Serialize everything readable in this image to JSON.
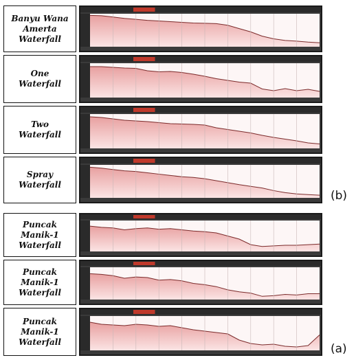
{
  "group_b": {
    "tag": "(b)",
    "rows": [
      {
        "label": "Banyu Wana\nAmerta\nWaterfall"
      },
      {
        "label": "One\nWaterfall"
      },
      {
        "label": "Two\nWaterfall"
      },
      {
        "label": "Spray\nWaterfall"
      }
    ]
  },
  "group_a": {
    "tag": "(a)",
    "rows": [
      {
        "label": "Puncak\nManik-1\nWaterfall"
      },
      {
        "label": "Puncak\nManik-1\nWaterfall"
      },
      {
        "label": "Puncak\nManik-1\nWaterfall"
      }
    ]
  },
  "colors": {
    "fill_top": "#e8a0a0",
    "fill_bottom": "#fbe4e4",
    "line": "#7a2a2a",
    "header": "#2b2b2b",
    "header_red": "#c0392b",
    "grid": "#c9b8b8"
  },
  "chart_data": [
    {
      "type": "area",
      "x": [
        0,
        0.05,
        0.1,
        0.15,
        0.2,
        0.25,
        0.3,
        0.35,
        0.4,
        0.45,
        0.5,
        0.55,
        0.6,
        0.65,
        0.7,
        0.75,
        0.8,
        0.85,
        0.9,
        0.95,
        1.0
      ],
      "y": [
        0.95,
        0.94,
        0.9,
        0.86,
        0.83,
        0.8,
        0.78,
        0.76,
        0.74,
        0.72,
        0.71,
        0.7,
        0.65,
        0.55,
        0.45,
        0.32,
        0.24,
        0.19,
        0.17,
        0.14,
        0.12
      ]
    },
    {
      "type": "area",
      "x": [
        0,
        0.05,
        0.1,
        0.15,
        0.2,
        0.25,
        0.3,
        0.35,
        0.4,
        0.45,
        0.5,
        0.55,
        0.6,
        0.65,
        0.7,
        0.75,
        0.8,
        0.85,
        0.9,
        0.95,
        1.0
      ],
      "y": [
        0.9,
        0.9,
        0.88,
        0.86,
        0.85,
        0.78,
        0.75,
        0.76,
        0.73,
        0.68,
        0.62,
        0.55,
        0.5,
        0.45,
        0.42,
        0.25,
        0.2,
        0.26,
        0.2,
        0.24,
        0.18
      ]
    },
    {
      "type": "area",
      "x": [
        0,
        0.05,
        0.1,
        0.15,
        0.2,
        0.25,
        0.3,
        0.35,
        0.4,
        0.45,
        0.5,
        0.55,
        0.6,
        0.65,
        0.7,
        0.75,
        0.8,
        0.85,
        0.9,
        0.95,
        1.0
      ],
      "y": [
        0.92,
        0.9,
        0.86,
        0.82,
        0.8,
        0.78,
        0.75,
        0.72,
        0.71,
        0.7,
        0.68,
        0.6,
        0.55,
        0.5,
        0.45,
        0.38,
        0.32,
        0.27,
        0.22,
        0.16,
        0.13
      ]
    },
    {
      "type": "area",
      "x": [
        0,
        0.05,
        0.1,
        0.15,
        0.2,
        0.25,
        0.3,
        0.35,
        0.4,
        0.45,
        0.5,
        0.55,
        0.6,
        0.65,
        0.7,
        0.75,
        0.8,
        0.85,
        0.9,
        0.95,
        1.0
      ],
      "y": [
        0.93,
        0.9,
        0.86,
        0.82,
        0.8,
        0.76,
        0.72,
        0.68,
        0.64,
        0.62,
        0.58,
        0.52,
        0.46,
        0.4,
        0.35,
        0.3,
        0.22,
        0.16,
        0.12,
        0.1,
        0.08
      ]
    },
    {
      "type": "area",
      "x": [
        0,
        0.05,
        0.1,
        0.15,
        0.2,
        0.25,
        0.3,
        0.35,
        0.4,
        0.45,
        0.5,
        0.55,
        0.6,
        0.65,
        0.7,
        0.75,
        0.8,
        0.85,
        0.9,
        0.95,
        1.0
      ],
      "y": [
        0.82,
        0.78,
        0.76,
        0.7,
        0.74,
        0.76,
        0.72,
        0.74,
        0.7,
        0.66,
        0.64,
        0.6,
        0.5,
        0.4,
        0.22,
        0.16,
        0.18,
        0.2,
        0.2,
        0.22,
        0.24
      ]
    },
    {
      "type": "area",
      "x": [
        0,
        0.05,
        0.1,
        0.15,
        0.2,
        0.25,
        0.3,
        0.35,
        0.4,
        0.45,
        0.5,
        0.55,
        0.6,
        0.65,
        0.7,
        0.75,
        0.8,
        0.85,
        0.9,
        0.95,
        1.0
      ],
      "y": [
        0.8,
        0.78,
        0.74,
        0.66,
        0.7,
        0.68,
        0.6,
        0.62,
        0.58,
        0.5,
        0.46,
        0.4,
        0.3,
        0.24,
        0.2,
        0.1,
        0.12,
        0.16,
        0.14,
        0.18,
        0.18
      ]
    },
    {
      "type": "area",
      "x": [
        0,
        0.05,
        0.1,
        0.15,
        0.2,
        0.25,
        0.3,
        0.35,
        0.4,
        0.45,
        0.5,
        0.55,
        0.6,
        0.65,
        0.7,
        0.75,
        0.8,
        0.85,
        0.9,
        0.95,
        1.0
      ],
      "y": [
        0.82,
        0.76,
        0.74,
        0.72,
        0.76,
        0.74,
        0.7,
        0.72,
        0.66,
        0.6,
        0.56,
        0.52,
        0.48,
        0.3,
        0.2,
        0.16,
        0.18,
        0.12,
        0.1,
        0.14,
        0.45
      ]
    }
  ]
}
